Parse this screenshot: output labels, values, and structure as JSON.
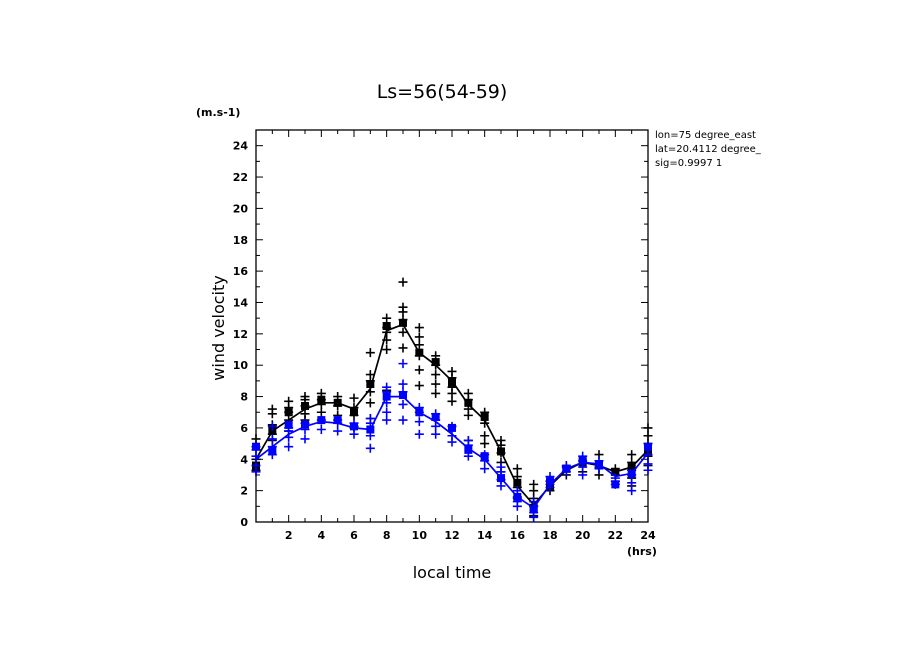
{
  "chart_data": {
    "type": "line",
    "title": "Ls=56(54-59)",
    "xlabel": "local time",
    "ylabel": "wind velocity",
    "x_unit": "(hrs)",
    "y_unit": "(m.s-1)",
    "annotations": [
      "lon=75 degree_east",
      "lat=20.4112 degree_",
      "sig=0.9997 1"
    ],
    "xlim": [
      0,
      24
    ],
    "ylim": [
      0,
      25
    ],
    "xticks": [
      2,
      4,
      6,
      8,
      10,
      12,
      14,
      16,
      18,
      20,
      22,
      24
    ],
    "yticks": [
      0,
      2,
      4,
      6,
      8,
      10,
      12,
      14,
      16,
      18,
      20,
      22,
      24
    ],
    "grid": false,
    "series": [
      {
        "color": "#000000",
        "x": [
          0,
          1,
          2,
          3,
          4,
          5,
          6,
          7,
          8,
          9,
          10,
          11,
          12,
          13,
          14,
          15,
          16,
          17,
          18,
          19,
          20,
          21,
          22,
          23,
          24
        ],
        "mean": [
          4.0,
          5.8,
          6.5,
          7.2,
          7.6,
          7.6,
          7.2,
          8.5,
          12.2,
          12.6,
          10.8,
          10.0,
          9.0,
          7.5,
          6.5,
          4.5,
          2.3,
          1.1,
          2.3,
          3.3,
          3.8,
          3.6,
          3.2,
          3.5,
          4.6
        ],
        "squares": [
          3.6,
          5.9,
          7.0,
          7.4,
          7.8,
          7.6,
          7.0,
          8.8,
          12.5,
          12.7,
          10.8,
          10.2,
          8.9,
          7.6,
          6.7,
          4.5,
          2.5,
          0.9,
          2.3,
          3.4,
          3.8,
          3.6,
          3.2,
          3.5,
          4.6
        ],
        "crosses": [
          [
            3.3,
            4.0,
            4.8,
            5.3
          ],
          [
            5.2,
            5.6,
            6.2,
            6.9,
            7.2
          ],
          [
            5.8,
            6.5,
            7.0,
            7.3,
            7.7
          ],
          [
            6.5,
            6.9,
            7.4,
            7.8,
            8.0
          ],
          [
            7.0,
            7.5,
            7.8,
            8.2
          ],
          [
            6.8,
            7.4,
            8.0
          ],
          [
            6.1,
            6.8,
            7.3,
            7.9
          ],
          [
            6.6,
            7.6,
            8.3,
            9.0,
            9.4,
            10.8
          ],
          [
            8.4,
            11.0,
            11.6,
            12.1,
            12.4,
            13.0
          ],
          [
            11.1,
            12.1,
            12.9,
            13.4,
            13.7,
            15.3
          ],
          [
            8.7,
            9.7,
            10.6,
            11.3,
            11.8,
            12.4
          ],
          [
            8.2,
            8.8,
            9.4,
            10.0,
            10.6
          ],
          [
            7.7,
            8.2,
            8.6,
            9.2,
            9.6
          ],
          [
            5.2,
            6.8,
            7.2,
            7.8,
            8.2
          ],
          [
            5.0,
            5.5,
            6.3,
            7.0
          ],
          [
            3.2,
            3.8,
            4.4,
            4.9,
            5.2
          ],
          [
            1.5,
            2.2,
            2.9,
            3.4
          ],
          [
            0.4,
            1.0,
            1.5,
            2.0,
            2.4
          ],
          [
            2.0,
            2.6
          ],
          [
            3.0,
            3.5
          ],
          [
            3.2,
            3.9
          ],
          [
            3.0,
            3.5,
            4.3
          ],
          [
            2.6,
            3.0,
            3.4
          ],
          [
            2.3,
            2.8,
            3.3,
            3.8,
            4.3
          ],
          [
            3.6,
            4.2,
            5.0,
            5.5,
            6.0
          ]
        ]
      },
      {
        "color": "#0000ff",
        "x": [
          0,
          1,
          2,
          3,
          4,
          5,
          6,
          7,
          8,
          9,
          10,
          11,
          12,
          13,
          14,
          15,
          16,
          17,
          18,
          19,
          20,
          21,
          22,
          23,
          24
        ],
        "mean": [
          4.0,
          4.8,
          5.6,
          6.1,
          6.4,
          6.3,
          6.0,
          5.9,
          8.0,
          8.0,
          7.0,
          6.4,
          5.6,
          4.7,
          4.0,
          2.8,
          1.6,
          0.9,
          2.4,
          3.4,
          3.8,
          3.7,
          2.9,
          3.1,
          4.4
        ],
        "squares": [
          4.8,
          4.5,
          6.2,
          6.2,
          6.5,
          6.5,
          6.1,
          5.9,
          8.0,
          8.1,
          7.0,
          6.7,
          6.0,
          4.6,
          4.2,
          2.8,
          1.6,
          0.8,
          2.6,
          3.4,
          3.9,
          3.7,
          2.4,
          3.1,
          4.8
        ],
        "crosses": [
          [
            3.2,
            3.6,
            4.2,
            4.6
          ],
          [
            4.3,
            4.8,
            5.3,
            6.1
          ],
          [
            4.8,
            5.4,
            5.8,
            6.0
          ],
          [
            5.3,
            5.9,
            6.3
          ],
          [
            5.9,
            6.5
          ],
          [
            5.8,
            6.3,
            6.5
          ],
          [
            5.6,
            6.0,
            6.3
          ],
          [
            4.7,
            5.5,
            6.3,
            6.6
          ],
          [
            6.5,
            7.0,
            7.6,
            8.3,
            8.6
          ],
          [
            6.5,
            7.5,
            8.3,
            8.8,
            10.1
          ],
          [
            5.6,
            6.4,
            7.0,
            7.3
          ],
          [
            5.6,
            6.1,
            6.5,
            6.9
          ],
          [
            5.1,
            5.5,
            6.1
          ],
          [
            4.2,
            4.9,
            5.2
          ],
          [
            3.4,
            3.9,
            4.3
          ],
          [
            2.3,
            2.7,
            3.2,
            3.5
          ],
          [
            1.0,
            1.3,
            1.6,
            2.0
          ],
          [
            0.3,
            0.6,
            1.0,
            1.3
          ],
          [
            2.2,
            2.4,
            2.9
          ],
          [
            3.2,
            3.6
          ],
          [
            3.0,
            3.5,
            4.2
          ],
          [
            3.4,
            3.9
          ],
          [
            2.4,
            2.8
          ],
          [
            2.0,
            2.5,
            3.0
          ],
          [
            3.3,
            3.7,
            4.3
          ]
        ]
      }
    ]
  }
}
